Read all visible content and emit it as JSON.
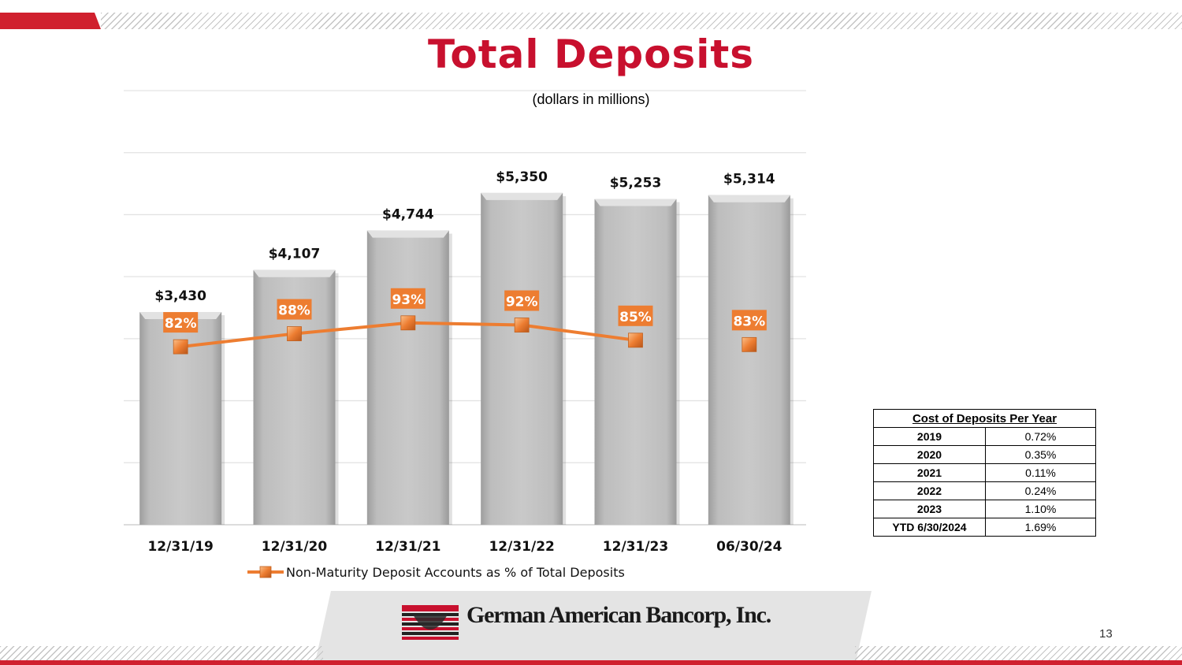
{
  "title": "Total Deposits",
  "subtitle": "(dollars in millions)",
  "chart_data": {
    "type": "bar",
    "categories": [
      "12/31/19",
      "12/31/20",
      "12/31/21",
      "12/31/22",
      "12/31/23",
      "06/30/24"
    ],
    "series": [
      {
        "values": [
          3430,
          4107,
          4744,
          5350,
          5253,
          5314
        ],
        "value_labels": [
          "$3,430",
          "$4,107",
          "$4,744",
          "$5,350",
          "$5,253",
          "$5,314"
        ],
        "color": "#c2c2c2"
      },
      {
        "name": "Non-Maturity Deposit Accounts as % of Total Deposits",
        "type": "line",
        "values": [
          82,
          88,
          93,
          92,
          85,
          83
        ],
        "value_labels": [
          "82%",
          "88%",
          "93%",
          "92%",
          "85%",
          "83%"
        ],
        "color": "#ed7d31"
      }
    ],
    "ylim": [
      0,
      7000
    ],
    "line_ylim": [
      0,
      200
    ],
    "grid": true,
    "legend": "bottom",
    "xlabel": "",
    "ylabel": ""
  },
  "cost_table": {
    "header": "Cost of Deposits Per Year",
    "rows": [
      {
        "year": "2019",
        "value": "0.72%"
      },
      {
        "year": "2020",
        "value": "0.35%"
      },
      {
        "year": "2021",
        "value": "0.11%"
      },
      {
        "year": "2022",
        "value": "0.24%"
      },
      {
        "year": "2023",
        "value": "1.10%"
      },
      {
        "year": "YTD 6/30/2024",
        "value": "1.69%"
      }
    ]
  },
  "company_name": "German American Bancorp, Inc.",
  "page_number": "13",
  "colors": {
    "accent_red": "#c8102e",
    "bar_gray": "#c2c2c2",
    "line_orange": "#ed7d31"
  }
}
